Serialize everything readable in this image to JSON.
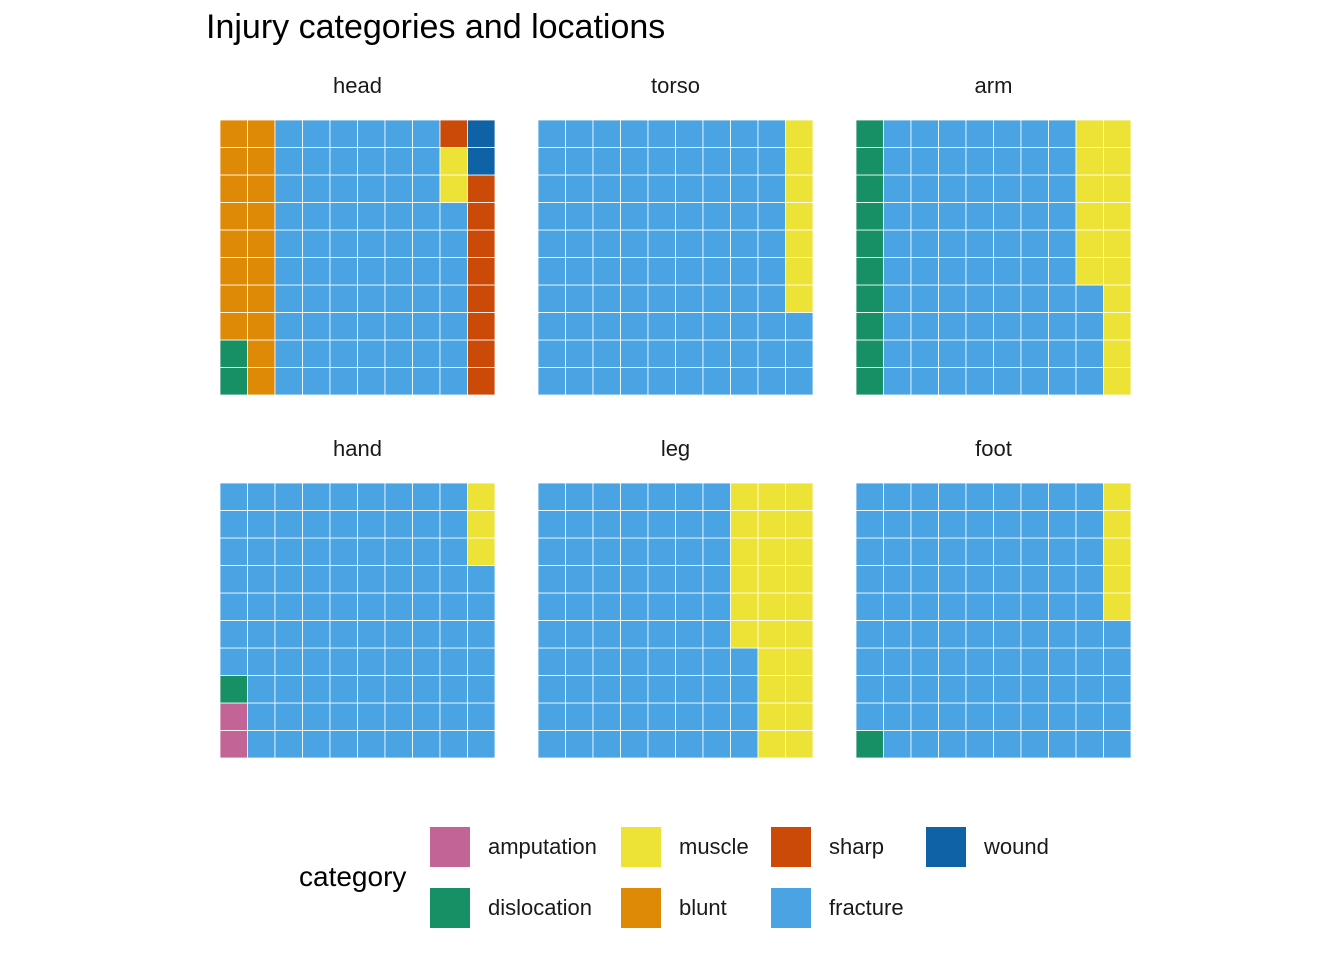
{
  "chart_data": {
    "type": "waffle",
    "title": "Injury categories and locations",
    "grid_size": [
      10,
      10
    ],
    "fill_order": "column-wise, bottom-to-top, left-to-right",
    "facets": [
      {
        "name": "head",
        "counts": {
          "blunt": 18,
          "dislocation": 2,
          "fracture": 67,
          "muscle": 2,
          "sharp": 9,
          "wound": 2
        }
      },
      {
        "name": "torso",
        "counts": {
          "fracture": 93,
          "muscle": 7
        }
      },
      {
        "name": "arm",
        "counts": {
          "dislocation": 10,
          "fracture": 74,
          "muscle": 16
        }
      },
      {
        "name": "hand",
        "counts": {
          "amputation": 2,
          "dislocation": 1,
          "fracture": 94,
          "muscle": 3
        }
      },
      {
        "name": "leg",
        "counts": {
          "fracture": 74,
          "muscle": 26
        }
      },
      {
        "name": "foot",
        "counts": {
          "dislocation": 1,
          "fracture": 94,
          "muscle": 5
        }
      }
    ],
    "category_order": [
      "amputation",
      "dislocation",
      "blunt",
      "fracture",
      "muscle",
      "sharp",
      "wound"
    ],
    "colors": {
      "amputation": "#C36497",
      "dislocation": "#169064",
      "blunt": "#DF8A06",
      "fracture": "#4AA3E2",
      "muscle": "#EDE236",
      "sharp": "#CB4A07",
      "wound": "#0E62A5"
    },
    "legend": {
      "title": "category",
      "position": "bottom",
      "entries": [
        "amputation",
        "dislocation",
        "muscle",
        "blunt",
        "sharp",
        "fracture",
        "wound"
      ]
    },
    "grid": false
  }
}
